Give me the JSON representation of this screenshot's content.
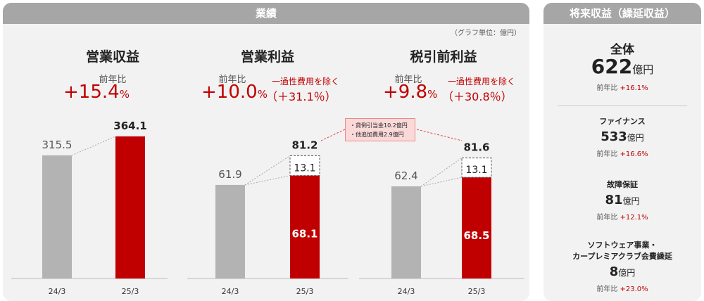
{
  "left_header": "業績",
  "unit_note": "（グラフ単位：億円）",
  "callout": [
    "・貸倒引当金10.2億円",
    "・他追加費用2.9億円"
  ],
  "charts": [
    {
      "title": "営業収益",
      "yoy_label": "前年比",
      "yoy": "+15.4",
      "pct": "%"
    },
    {
      "title": "営業利益",
      "yoy_label": "前年比",
      "yoy": "+10.0",
      "pct": "%",
      "adj_label": "一過性費用を除く",
      "adj": "（＋31.1％）"
    },
    {
      "title": "税引前利益",
      "yoy_label": "前年比",
      "yoy": "+9.8",
      "pct": "%",
      "adj_label": "一過性費用を除く",
      "adj": "（＋30.8％）"
    }
  ],
  "chart_data": [
    {
      "type": "bar",
      "title": "営業収益",
      "categories": [
        "24/3",
        "25/3"
      ],
      "values": [
        315.5,
        364.1
      ],
      "labels": [
        "315.5",
        "364.1"
      ],
      "colors": [
        "#b3b3b3",
        "#c00000"
      ]
    },
    {
      "type": "bar",
      "title": "営業利益",
      "categories": [
        "24/3",
        "25/3"
      ],
      "values": [
        61.9,
        81.2
      ],
      "labels": [
        "61.9",
        "81.2"
      ],
      "stack_25_3": {
        "base": 68.1,
        "one_time": 13.1
      },
      "colors": [
        "#b3b3b3",
        "#c00000"
      ]
    },
    {
      "type": "bar",
      "title": "税引前利益",
      "categories": [
        "24/3",
        "25/3"
      ],
      "values": [
        62.4,
        81.6
      ],
      "labels": [
        "62.4",
        "81.6"
      ],
      "stack_25_3": {
        "base": 68.5,
        "one_time": 13.1
      },
      "colors": [
        "#b3b3b3",
        "#c00000"
      ]
    }
  ],
  "right": {
    "header": "将来収益（繰延収益）",
    "total": {
      "title": "全体",
      "value": "622",
      "unit": "億円",
      "yoy_label": "前年比",
      "yoy": "+16.1%"
    },
    "items": [
      {
        "title": "ファイナンス",
        "value": "533",
        "unit": "億円",
        "yoy_label": "前年比",
        "yoy": "+16.6%"
      },
      {
        "title": "故障保証",
        "value": "81",
        "unit": "億円",
        "yoy_label": "前年比",
        "yoy": "+12.1%"
      },
      {
        "title1": "ソフトウェア事業・",
        "title2": "カープレミアクラブ会費繰延",
        "value": "8",
        "unit": "億円",
        "yoy_label": "前年比",
        "yoy": "+23.0%"
      }
    ]
  }
}
